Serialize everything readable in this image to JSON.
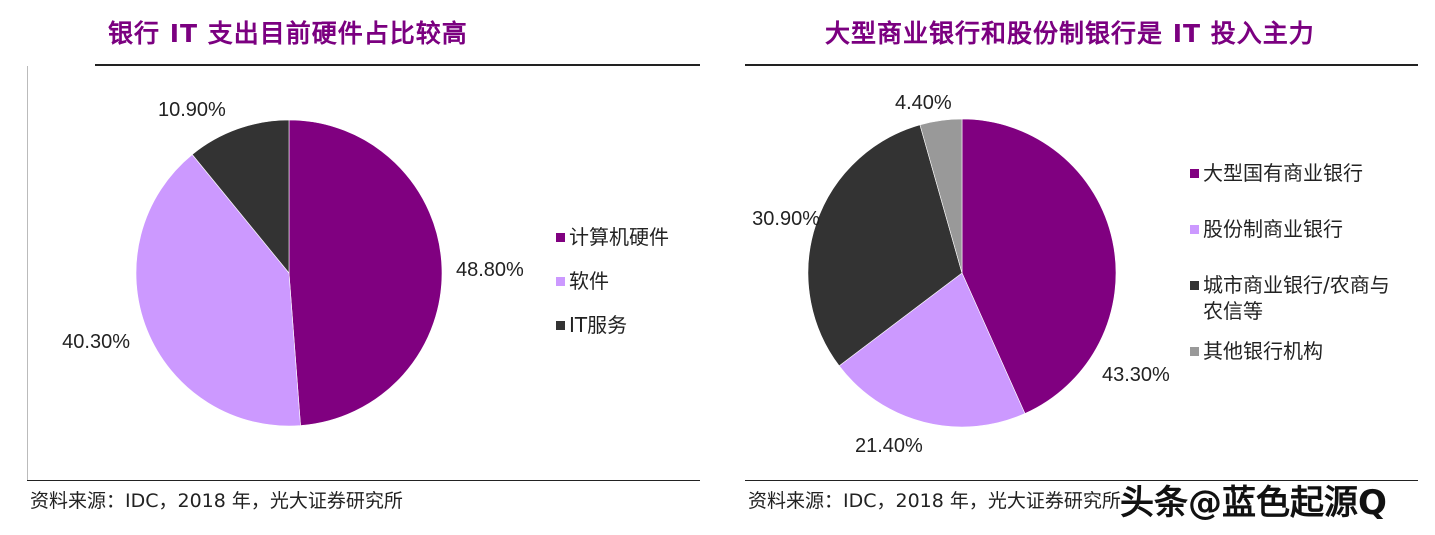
{
  "colors": {
    "title": "#7b0080",
    "purple": "#800080",
    "lavender": "#cc99ff",
    "dark": "#333333",
    "gray": "#999999"
  },
  "left": {
    "title": "银行 IT 支出目前硬件占比较高",
    "source": "资料来源：IDC，2018 年，光大证券研究所"
  },
  "right": {
    "title": "大型商业银行和股份制银行是 IT 投入主力",
    "source": "资料来源：IDC，2018 年，光大证券研究所"
  },
  "watermark": "头条@蓝色起源Q",
  "chart_data": [
    {
      "type": "pie",
      "start": "12 o'clock, clockwise",
      "slices": [
        {
          "label": "计算机硬件",
          "value": 48.8,
          "text": "48.80%",
          "color": "#800080"
        },
        {
          "label": "软件",
          "value": 40.3,
          "text": "40.30%",
          "color": "#cc99ff"
        },
        {
          "label": "IT服务",
          "value": 10.9,
          "text": "10.90%",
          "color": "#333333"
        }
      ],
      "legend_position": "right"
    },
    {
      "type": "pie",
      "start": "12 o'clock, clockwise",
      "slices": [
        {
          "label": "大型国有商业银行",
          "value": 43.3,
          "text": "43.30%",
          "color": "#800080"
        },
        {
          "label": "股份制商业银行",
          "value": 21.4,
          "text": "21.40%",
          "color": "#cc99ff"
        },
        {
          "label": "城市商业银行/农商与农信等",
          "value": 30.9,
          "text": "30.90%",
          "color": "#333333"
        },
        {
          "label": "其他银行机构",
          "value": 4.4,
          "text": "4.40%",
          "color": "#999999"
        }
      ],
      "legend_position": "right"
    }
  ]
}
